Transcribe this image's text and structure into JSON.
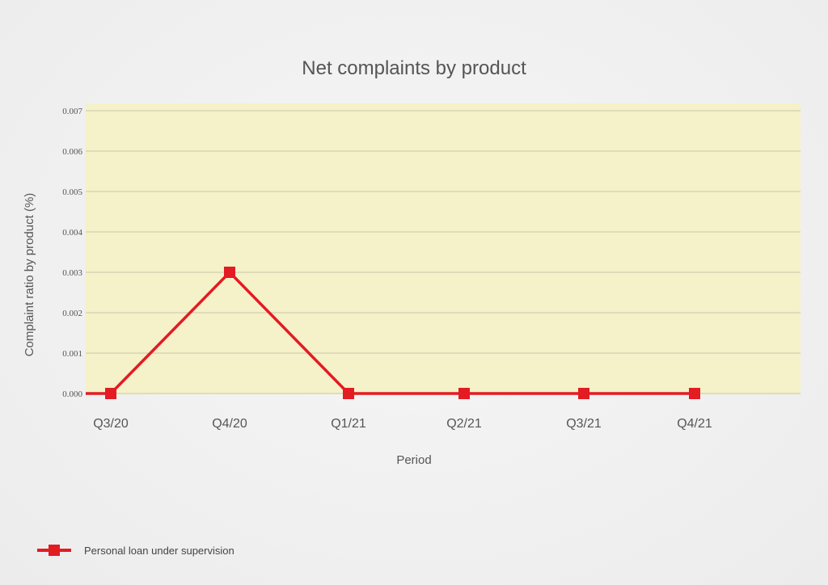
{
  "chart_data": {
    "type": "line",
    "title": "Net complaints by product",
    "xlabel": "Period",
    "ylabel": "Complaint ratio by product (%)",
    "categories": [
      "Q3/20",
      "Q4/20",
      "Q1/21",
      "Q2/21",
      "Q3/21",
      "Q4/21"
    ],
    "yticks": [
      "0.000",
      "0.001",
      "0.002",
      "0.003",
      "0.004",
      "0.005",
      "0.006",
      "0.007"
    ],
    "ylim": [
      0,
      0.007
    ],
    "grid": true,
    "legend_position": "bottom-left",
    "series": [
      {
        "name": "Personal loan under supervision",
        "values": [
          0.0,
          0.003,
          0.0,
          0.0,
          0.0,
          0.0
        ],
        "color": "#e31b23",
        "marker": "square"
      }
    ]
  },
  "colors": {
    "plot_background": "#f5f1c9",
    "gridline": "#c9c6b0",
    "axis_text": "#555555"
  }
}
